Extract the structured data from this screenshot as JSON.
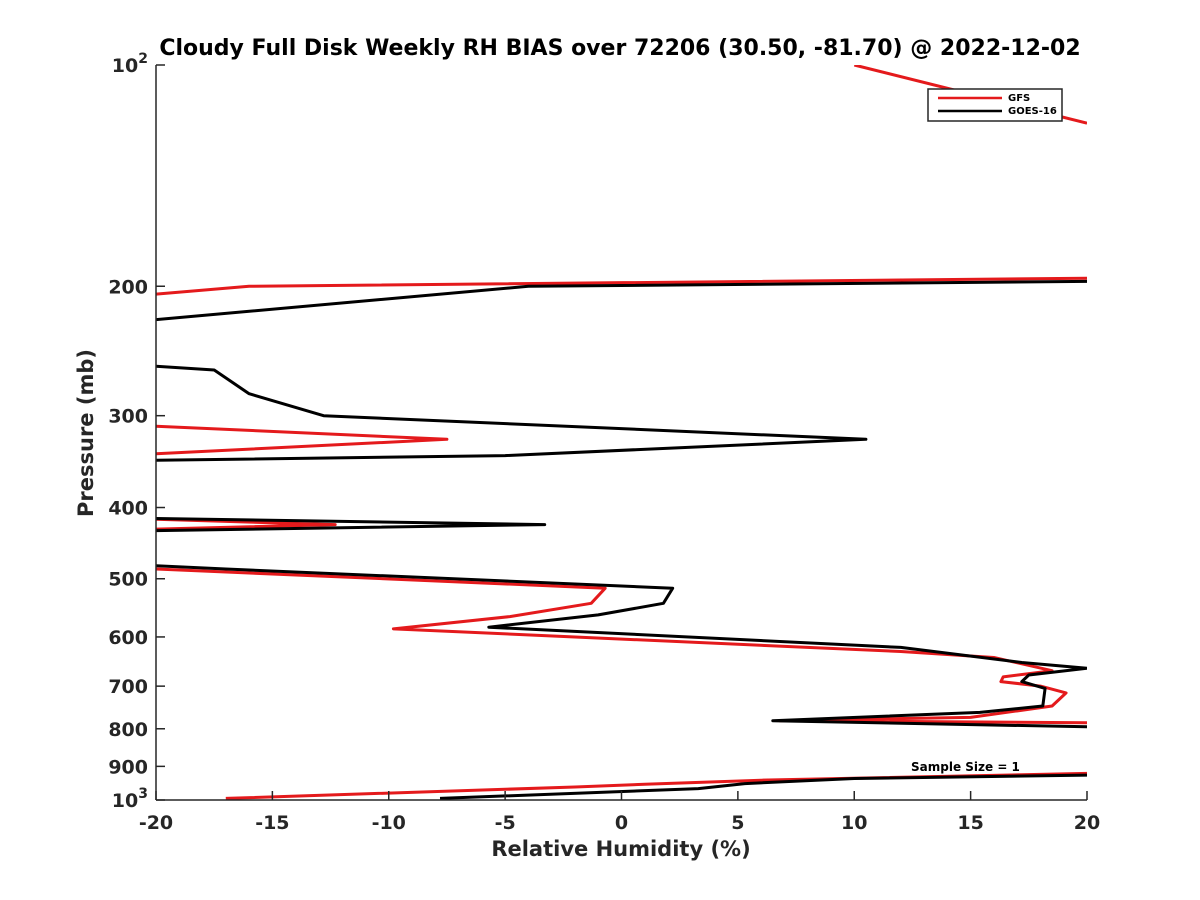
{
  "chart_data": {
    "type": "line",
    "title": "Cloudy Full Disk Weekly RH BIAS over 72206 (30.50, -81.70) @ 2022-12-02",
    "xlabel": "Relative Humidity (%)",
    "ylabel": "Pressure (mb)",
    "xlim": [
      -20,
      20
    ],
    "ylim": [
      100,
      1000
    ],
    "yscale": "log",
    "y_reversed": true,
    "xticks": [
      -20,
      -15,
      -10,
      -5,
      0,
      5,
      10,
      15,
      20
    ],
    "xtick_labels": [
      "-20",
      "-15",
      "-10",
      "-5",
      "0",
      "5",
      "10",
      "15",
      "20"
    ],
    "yticks": [
      100,
      200,
      300,
      400,
      500,
      600,
      700,
      800,
      900,
      1000
    ],
    "ytick_labels": [
      {
        "base": "10",
        "exp": "2"
      },
      {
        "base": "200",
        "exp": ""
      },
      {
        "base": "300",
        "exp": ""
      },
      {
        "base": "400",
        "exp": ""
      },
      {
        "base": "500",
        "exp": ""
      },
      {
        "base": "600",
        "exp": ""
      },
      {
        "base": "700",
        "exp": ""
      },
      {
        "base": "800",
        "exp": ""
      },
      {
        "base": "900",
        "exp": ""
      },
      {
        "base": "10",
        "exp": "3"
      }
    ],
    "legend_position": "top-right",
    "annotation": "Sample Size = 1",
    "series": [
      {
        "name": "GFS",
        "color": "#e41a1c",
        "segments": [
          [
            [
              10.0,
              100
            ],
            [
              20.0,
              120
            ]
          ],
          [
            [
              -20.0,
              205
            ],
            [
              -16.0,
              200
            ],
            [
              20.0,
              195
            ]
          ],
          [
            [
              -20.0,
              310
            ],
            [
              -7.5,
              323
            ],
            [
              -20.0,
              338
            ]
          ],
          [
            [
              -20.0,
              415
            ],
            [
              -12.3,
              422
            ],
            [
              -20.0,
              428
            ]
          ],
          [
            [
              -20.0,
              485
            ],
            [
              -0.7,
              515
            ],
            [
              -1.3,
              540
            ],
            [
              -4.8,
              563
            ],
            [
              -9.8,
              585
            ],
            [
              12.0,
              628
            ],
            [
              16.0,
              640
            ],
            [
              18.5,
              667
            ],
            [
              16.4,
              680
            ],
            [
              16.3,
              690
            ],
            [
              18.0,
              700
            ],
            [
              19.1,
              715
            ],
            [
              18.5,
              745
            ],
            [
              15.0,
              772
            ],
            [
              6.8,
              780
            ],
            [
              20.0,
              785
            ]
          ],
          [
            [
              -17.0,
              995
            ],
            [
              -2.0,
              960
            ],
            [
              1.0,
              952
            ],
            [
              6.0,
              940
            ],
            [
              20.0,
              920
            ]
          ]
        ]
      },
      {
        "name": "GOES-16",
        "color": "#000000",
        "segments": [
          [
            [
              -20.0,
              222
            ],
            [
              -4.0,
              200
            ],
            [
              20.0,
              197
            ]
          ],
          [
            [
              -20.0,
              257
            ],
            [
              -17.5,
              260
            ],
            [
              -16.0,
              280
            ],
            [
              -12.8,
              300
            ],
            [
              10.5,
              323
            ],
            [
              -5.0,
              340
            ],
            [
              -20.0,
              345
            ]
          ],
          [
            [
              -20.0,
              414
            ],
            [
              -3.3,
              422
            ],
            [
              -20.0,
              430
            ]
          ],
          [
            [
              -20.0,
              480
            ],
            [
              -17.0,
              485
            ],
            [
              2.2,
              515
            ],
            [
              1.8,
              540
            ],
            [
              -1.0,
              560
            ],
            [
              -5.7,
              582
            ],
            [
              12.0,
              620
            ],
            [
              17.2,
              650
            ],
            [
              20.0,
              662
            ],
            [
              17.5,
              676
            ],
            [
              17.2,
              690
            ],
            [
              18.2,
              705
            ],
            [
              18.1,
              745
            ],
            [
              15.4,
              760
            ],
            [
              6.5,
              780
            ],
            [
              20.0,
              795
            ]
          ],
          [
            [
              -7.8,
              995
            ],
            [
              3.3,
              965
            ],
            [
              5.3,
              950
            ],
            [
              10.0,
              935
            ],
            [
              20.0,
              925
            ]
          ]
        ]
      }
    ]
  }
}
